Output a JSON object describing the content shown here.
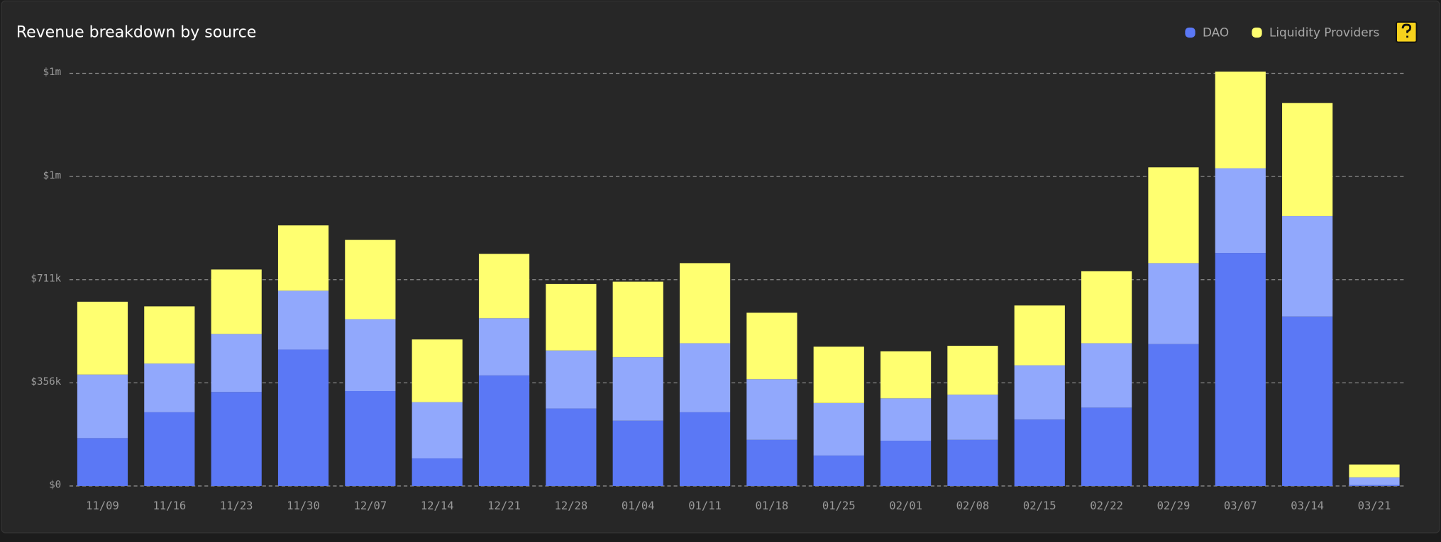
{
  "chart_data": {
    "type": "stacked-bar",
    "title": "Revenue breakdown by source",
    "categories": [
      "11/09",
      "11/16",
      "11/23",
      "11/30",
      "12/07",
      "12/14",
      "12/21",
      "12/28",
      "01/04",
      "01/11",
      "01/18",
      "01/25",
      "02/01",
      "02/08",
      "02/15",
      "02/22",
      "02/29",
      "03/07",
      "03/14",
      "03/21"
    ],
    "series": [
      {
        "name": "DAO",
        "color": "#5b78f5",
        "values": [
          165000,
          254000,
          324000,
          470000,
          327000,
          95000,
          381000,
          267000,
          225000,
          254000,
          159000,
          105000,
          156000,
          159000,
          229000,
          270000,
          489000,
          803000,
          584000,
          3000
        ]
      },
      {
        "color": "#91a8fc",
        "values": [
          219000,
          168000,
          200000,
          203000,
          248000,
          194000,
          197000,
          200000,
          219000,
          238000,
          209000,
          181000,
          146000,
          156000,
          187000,
          222000,
          279000,
          292000,
          346000,
          27000
        ]
      },
      {
        "name": "Liquidity Providers",
        "color": "#ffff70",
        "values": [
          251000,
          197000,
          222000,
          225000,
          273000,
          216000,
          222000,
          229000,
          260000,
          276000,
          229000,
          194000,
          162000,
          168000,
          206000,
          248000,
          330000,
          333000,
          390000,
          44000
        ]
      }
    ],
    "legend_series": [
      0,
      2
    ],
    "ylim": [
      0,
      1422000
    ],
    "yticks": [
      {
        "value": 0,
        "label": "$0"
      },
      {
        "value": 355500,
        "label": "$356k"
      },
      {
        "value": 711000,
        "label": "$711k"
      },
      {
        "value": 1066500,
        "label": "$1m"
      },
      {
        "value": 1422000,
        "label": "$1m"
      }
    ],
    "grid": true
  }
}
